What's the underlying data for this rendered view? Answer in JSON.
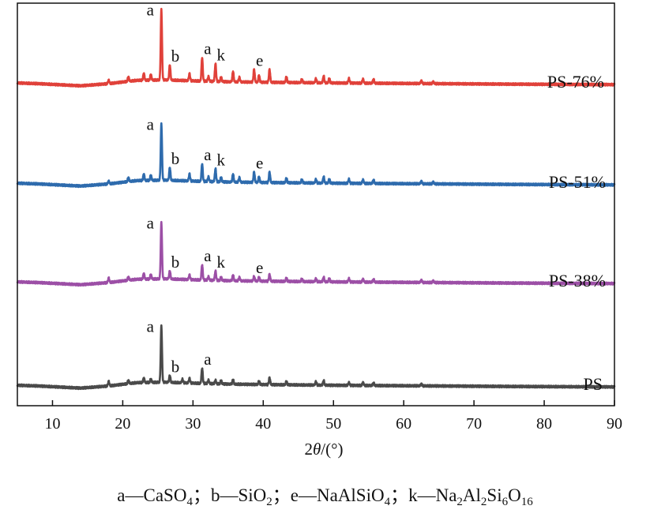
{
  "chart_data": {
    "type": "line",
    "xlabel_parts": [
      "2",
      "θ",
      "/(°)"
    ],
    "xlim": [
      5,
      90
    ],
    "xticks": [
      "10",
      "20",
      "30",
      "40",
      "50",
      "60",
      "70",
      "80",
      "90"
    ],
    "ylabel": "",
    "series": [
      {
        "name": "PS-76%",
        "color": "#e0413a",
        "background": [
          [
            5,
            0.3
          ],
          [
            8,
            0.0
          ],
          [
            10,
            -0.3
          ],
          [
            14,
            -0.9
          ],
          [
            18,
            0.0
          ],
          [
            22,
            1.4
          ],
          [
            26,
            1.6
          ],
          [
            30,
            1.2
          ],
          [
            35,
            0.8
          ],
          [
            40,
            0.6
          ],
          [
            50,
            0.3
          ],
          [
            60,
            0.1
          ],
          [
            75,
            -0.2
          ],
          [
            90,
            -0.4
          ]
        ],
        "peaks": [
          [
            18.0,
            1.5
          ],
          [
            20.8,
            2.0
          ],
          [
            23.0,
            3.0
          ],
          [
            24.0,
            2.5
          ],
          [
            25.5,
            30.0
          ],
          [
            26.7,
            6.5
          ],
          [
            29.5,
            3.0
          ],
          [
            31.3,
            10.0
          ],
          [
            32.2,
            2.0
          ],
          [
            33.2,
            7.5
          ],
          [
            34.0,
            2.0
          ],
          [
            35.7,
            4.5
          ],
          [
            36.6,
            2.0
          ],
          [
            38.7,
            5.5
          ],
          [
            39.4,
            3.0
          ],
          [
            40.9,
            5.5
          ],
          [
            43.3,
            2.5
          ],
          [
            45.5,
            1.5
          ],
          [
            47.5,
            1.8
          ],
          [
            48.6,
            3.0
          ],
          [
            49.4,
            2.0
          ],
          [
            52.2,
            2.0
          ],
          [
            54.2,
            1.8
          ],
          [
            55.7,
            1.8
          ],
          [
            62.5,
            1.2
          ],
          [
            64.2,
            0.8
          ]
        ],
        "labels": [
          {
            "text": "a",
            "x": 25.5
          },
          {
            "text": "b",
            "x": 26.7
          },
          {
            "text": "a",
            "x": 31.3
          },
          {
            "text": "k",
            "x": 33.2
          },
          {
            "text": "e",
            "x": 38.7
          }
        ]
      },
      {
        "name": "PS-51%",
        "color": "#2e6bad",
        "background": [
          [
            5,
            0.3
          ],
          [
            8,
            0.0
          ],
          [
            10,
            -0.3
          ],
          [
            14,
            -0.9
          ],
          [
            18,
            0.0
          ],
          [
            22,
            1.4
          ],
          [
            26,
            1.6
          ],
          [
            30,
            1.2
          ],
          [
            35,
            0.8
          ],
          [
            40,
            0.6
          ],
          [
            50,
            0.3
          ],
          [
            60,
            0.1
          ],
          [
            75,
            -0.2
          ],
          [
            90,
            -0.4
          ]
        ],
        "peaks": [
          [
            18.0,
            1.2
          ],
          [
            20.8,
            1.8
          ],
          [
            23.0,
            2.8
          ],
          [
            24.0,
            2.3
          ],
          [
            25.5,
            24.0
          ],
          [
            26.7,
            5.5
          ],
          [
            29.5,
            3.0
          ],
          [
            31.3,
            7.5
          ],
          [
            32.2,
            2.0
          ],
          [
            33.2,
            5.5
          ],
          [
            34.0,
            2.0
          ],
          [
            35.7,
            3.5
          ],
          [
            36.6,
            2.0
          ],
          [
            38.7,
            4.5
          ],
          [
            39.4,
            2.5
          ],
          [
            40.9,
            4.5
          ],
          [
            43.3,
            2.0
          ],
          [
            45.5,
            1.5
          ],
          [
            47.5,
            1.6
          ],
          [
            48.6,
            2.8
          ],
          [
            49.4,
            1.8
          ],
          [
            52.2,
            1.8
          ],
          [
            54.2,
            1.6
          ],
          [
            55.7,
            1.6
          ],
          [
            62.5,
            1.1
          ],
          [
            64.2,
            0.8
          ]
        ],
        "labels": [
          {
            "text": "a",
            "x": 25.5
          },
          {
            "text": "b",
            "x": 26.7
          },
          {
            "text": "a",
            "x": 31.3
          },
          {
            "text": "k",
            "x": 33.2
          },
          {
            "text": "e",
            "x": 38.7
          }
        ]
      },
      {
        "name": "PS-38%",
        "color": "#9c4fa6",
        "background": [
          [
            5,
            0.3
          ],
          [
            8,
            0.0
          ],
          [
            10,
            -0.3
          ],
          [
            14,
            -0.9
          ],
          [
            18,
            0.0
          ],
          [
            22,
            1.4
          ],
          [
            26,
            1.6
          ],
          [
            30,
            1.2
          ],
          [
            35,
            0.8
          ],
          [
            40,
            0.6
          ],
          [
            50,
            0.3
          ],
          [
            60,
            0.1
          ],
          [
            75,
            -0.2
          ],
          [
            90,
            -0.4
          ]
        ],
        "peaks": [
          [
            18.0,
            2.0
          ],
          [
            20.8,
            1.5
          ],
          [
            23.0,
            2.5
          ],
          [
            24.0,
            2.0
          ],
          [
            25.5,
            24.0
          ],
          [
            26.7,
            3.5
          ],
          [
            29.5,
            2.0
          ],
          [
            31.3,
            6.5
          ],
          [
            32.2,
            1.5
          ],
          [
            33.2,
            4.0
          ],
          [
            34.0,
            1.5
          ],
          [
            35.7,
            2.5
          ],
          [
            36.6,
            1.5
          ],
          [
            38.7,
            2.0
          ],
          [
            39.4,
            1.8
          ],
          [
            40.9,
            3.0
          ],
          [
            43.3,
            1.5
          ],
          [
            45.5,
            1.2
          ],
          [
            47.5,
            1.3
          ],
          [
            48.6,
            2.0
          ],
          [
            49.4,
            1.5
          ],
          [
            52.2,
            1.5
          ],
          [
            54.2,
            1.3
          ],
          [
            55.7,
            1.3
          ],
          [
            62.5,
            1.0
          ],
          [
            64.2,
            0.7
          ]
        ],
        "labels": [
          {
            "text": "a",
            "x": 25.5
          },
          {
            "text": "b",
            "x": 26.7
          },
          {
            "text": "a",
            "x": 31.3
          },
          {
            "text": "k",
            "x": 33.2
          },
          {
            "text": "e",
            "x": 38.7
          }
        ]
      },
      {
        "name": "PS",
        "color": "#4a4a4a",
        "background": [
          [
            5,
            0.3
          ],
          [
            8,
            0.0
          ],
          [
            10,
            -0.3
          ],
          [
            14,
            -0.9
          ],
          [
            18,
            0.0
          ],
          [
            22,
            1.4
          ],
          [
            26,
            1.6
          ],
          [
            30,
            1.2
          ],
          [
            35,
            0.8
          ],
          [
            40,
            0.6
          ],
          [
            50,
            0.3
          ],
          [
            60,
            0.1
          ],
          [
            75,
            -0.2
          ],
          [
            90,
            -0.4
          ]
        ],
        "peaks": [
          [
            18.0,
            2.0
          ],
          [
            20.8,
            1.5
          ],
          [
            23.0,
            2.0
          ],
          [
            24.0,
            1.5
          ],
          [
            25.5,
            24.0
          ],
          [
            26.7,
            3.0
          ],
          [
            28.5,
            1.5
          ],
          [
            29.5,
            2.0
          ],
          [
            31.3,
            6.5
          ],
          [
            32.2,
            1.5
          ],
          [
            33.2,
            1.5
          ],
          [
            34.0,
            1.5
          ],
          [
            35.7,
            2.0
          ],
          [
            39.4,
            1.5
          ],
          [
            40.9,
            3.0
          ],
          [
            43.3,
            1.5
          ],
          [
            47.5,
            1.5
          ],
          [
            48.6,
            2.0
          ],
          [
            52.2,
            1.2
          ],
          [
            54.2,
            1.3
          ],
          [
            55.7,
            1.2
          ],
          [
            62.5,
            0.8
          ]
        ],
        "labels": [
          {
            "text": "a",
            "x": 25.5
          },
          {
            "text": "b",
            "x": 26.7
          },
          {
            "text": "a",
            "x": 31.3
          }
        ]
      }
    ]
  },
  "caption_parts": [
    "a—CaSO",
    "4",
    "；b—SiO",
    "2",
    "；e—NaAlSiO",
    "4",
    "；k—Na",
    "2",
    "Al",
    "2",
    "Si",
    "6",
    "O",
    "16"
  ]
}
